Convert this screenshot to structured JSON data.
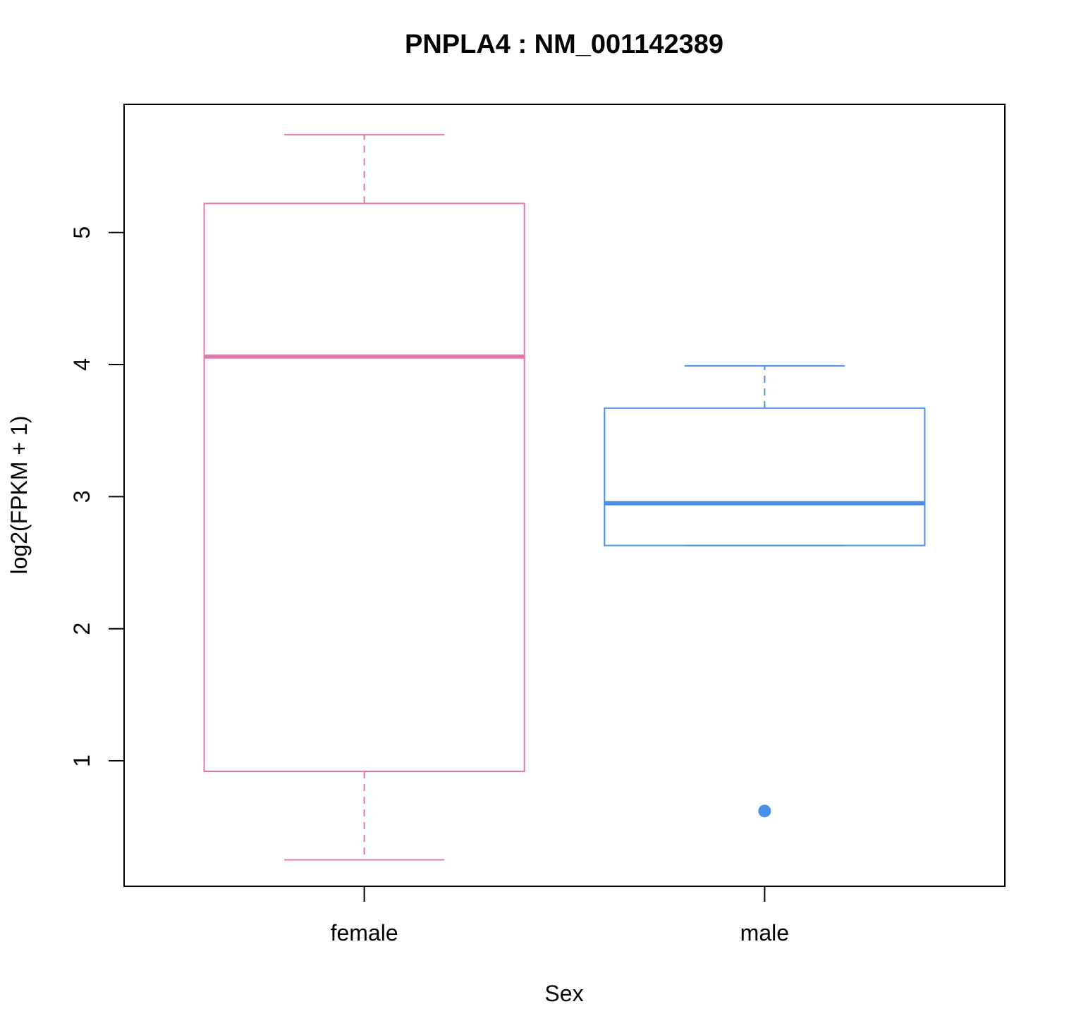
{
  "chart_data": {
    "type": "boxplot",
    "title": "PNPLA4  :  NM_001142389",
    "xlabel": "Sex",
    "ylabel": "log2(FPKM + 1)",
    "ylim": [
      0.05,
      5.97
    ],
    "yticks": [
      1,
      2,
      3,
      4,
      5
    ],
    "categories": [
      "female",
      "male"
    ],
    "boxes": [
      {
        "name": "female",
        "color": "#E377B0",
        "whisker_low": 0.25,
        "q1": 0.92,
        "median": 4.06,
        "q3": 5.22,
        "whisker_high": 5.74,
        "outliers": []
      },
      {
        "name": "male",
        "color": "#4A8FE7",
        "whisker_low": 2.63,
        "q1": 2.63,
        "median": 2.95,
        "q3": 3.67,
        "whisker_high": 3.99,
        "outliers": [
          0.62
        ]
      }
    ],
    "grid": false,
    "legend": "none"
  }
}
